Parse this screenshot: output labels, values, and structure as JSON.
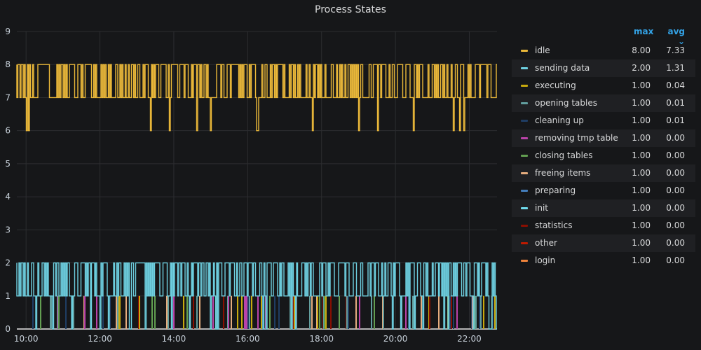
{
  "panel": {
    "title": "Process States"
  },
  "legend": {
    "headers": {
      "max": "max",
      "avg": "avg ⌄"
    },
    "items": [
      {
        "name": "idle",
        "max": "8.00",
        "avg": "7.33",
        "color": "#eab839"
      },
      {
        "name": "sending data",
        "max": "2.00",
        "avg": "1.31",
        "color": "#6ed0e0"
      },
      {
        "name": "executing",
        "max": "1.00",
        "avg": "0.04",
        "color": "#c7a90e"
      },
      {
        "name": "opening tables",
        "max": "1.00",
        "avg": "0.01",
        "color": "#629e9e"
      },
      {
        "name": "cleaning up",
        "max": "1.00",
        "avg": "0.01",
        "color": "#1f3d63"
      },
      {
        "name": "removing tmp table",
        "max": "1.00",
        "avg": "0.00",
        "color": "#ba43a9"
      },
      {
        "name": "closing tables",
        "max": "1.00",
        "avg": "0.00",
        "color": "#629e51"
      },
      {
        "name": "freeing items",
        "max": "1.00",
        "avg": "0.00",
        "color": "#e5ac7e"
      },
      {
        "name": "preparing",
        "max": "1.00",
        "avg": "0.00",
        "color": "#447ebc"
      },
      {
        "name": "init",
        "max": "1.00",
        "avg": "0.00",
        "color": "#70dbed"
      },
      {
        "name": "statistics",
        "max": "1.00",
        "avg": "0.00",
        "color": "#890f02"
      },
      {
        "name": "other",
        "max": "1.00",
        "avg": "0.00",
        "color": "#bf1b00"
      },
      {
        "name": "login",
        "max": "1.00",
        "avg": "0.00",
        "color": "#ef843c"
      }
    ]
  },
  "chart_data": {
    "type": "line",
    "title": "Process States",
    "ylim": [
      0,
      9
    ],
    "yticks": [
      "0",
      "1",
      "2",
      "3",
      "4",
      "5",
      "6",
      "7",
      "8",
      "9"
    ],
    "xticks": [
      "10:00",
      "12:00",
      "14:00",
      "16:00",
      "18:00",
      "20:00",
      "22:00"
    ],
    "xrange": [
      "09:45",
      "22:45"
    ],
    "grid": true,
    "legend_position": "right",
    "series": [
      {
        "name": "idle",
        "color": "#eab839",
        "range": [
          7,
          8
        ],
        "dips": [
          6
        ],
        "note_values": "oscillates between 7 and 8 with occasional dips to 6"
      },
      {
        "name": "sending data",
        "color": "#6ed0e0",
        "range": [
          1,
          2
        ],
        "dips": [
          0
        ]
      },
      {
        "name": "executing",
        "color": "#c7a90e",
        "range": [
          0,
          1
        ]
      },
      {
        "name": "removing tmp table",
        "color": "#ba43a9",
        "range": [
          0,
          1
        ]
      },
      {
        "name": "closing tables",
        "color": "#629e51",
        "range": [
          0,
          1
        ]
      },
      {
        "name": "cleaning up",
        "color": "#1f3d63",
        "range": [
          0,
          1
        ]
      },
      {
        "name": "opening tables",
        "color": "#629e9e",
        "range": [
          0,
          1
        ]
      },
      {
        "name": "statistics",
        "color": "#890f02",
        "range": [
          0,
          1
        ]
      },
      {
        "name": "freeing items",
        "color": "#e5ac7e",
        "range": [
          0,
          1
        ]
      }
    ]
  }
}
